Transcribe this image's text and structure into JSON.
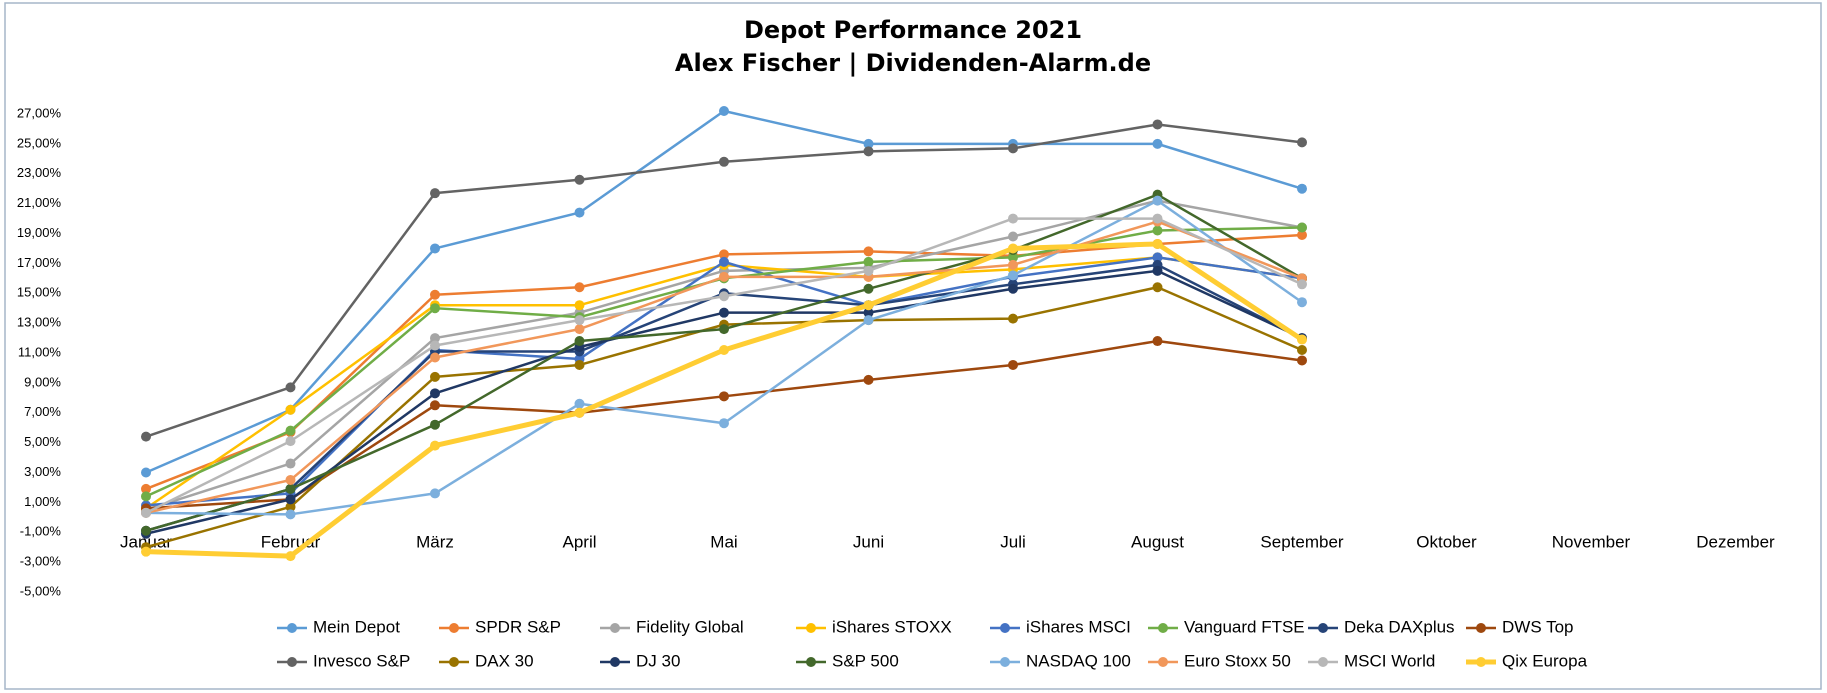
{
  "chart_data": {
    "type": "line",
    "title": "Depot Performance 2021",
    "subtitle": "Alex Fischer | Dividenden-Alarm.de",
    "categories": [
      "Januar",
      "Februar",
      "März",
      "April",
      "Mai",
      "Juni",
      "Juli",
      "August",
      "September",
      "Oktober",
      "November",
      "Dezember"
    ],
    "ylim": [
      -5,
      27
    ],
    "yticks": [
      {
        "value": -5,
        "label": "-5,00%"
      },
      {
        "value": -3,
        "label": "-3,00%"
      },
      {
        "value": -1,
        "label": "-1,00%"
      },
      {
        "value": 1,
        "label": "1,00%"
      },
      {
        "value": 3,
        "label": "3,00%"
      },
      {
        "value": 5,
        "label": "5,00%"
      },
      {
        "value": 7,
        "label": "7,00%"
      },
      {
        "value": 9,
        "label": "9,00%"
      },
      {
        "value": 11,
        "label": "11,00%"
      },
      {
        "value": 13,
        "label": "13,00%"
      },
      {
        "value": 15,
        "label": "15,00%"
      },
      {
        "value": 17,
        "label": "17,00%"
      },
      {
        "value": 19,
        "label": "19,00%"
      },
      {
        "value": 21,
        "label": "21,00%"
      },
      {
        "value": 23,
        "label": "23,00%"
      },
      {
        "value": 25,
        "label": "25,00%"
      },
      {
        "value": 27,
        "label": "27,00%"
      }
    ],
    "grid": false,
    "legend": "bottom",
    "series": [
      {
        "name": "Mein Depot",
        "color": "#5b9bd5",
        "values": [
          3.0,
          7.2,
          18.0,
          20.4,
          27.2,
          25.0,
          25.0,
          25.0,
          22.0,
          null,
          null,
          null
        ]
      },
      {
        "name": "SPDR S&P",
        "color": "#ed7d31",
        "values": [
          1.9,
          5.7,
          14.9,
          15.4,
          17.6,
          17.8,
          17.5,
          18.3,
          18.9,
          null,
          null,
          null
        ]
      },
      {
        "name": "Fidelity Global",
        "color": "#a5a5a5",
        "values": [
          0.5,
          3.6,
          12.0,
          13.7,
          16.5,
          16.7,
          18.8,
          21.2,
          19.4,
          null,
          null,
          null
        ]
      },
      {
        "name": "iShares STOXX",
        "color": "#ffc000",
        "values": [
          0.6,
          7.2,
          14.2,
          14.2,
          16.9,
          16.1,
          16.6,
          17.4,
          16.0,
          null,
          null,
          null
        ]
      },
      {
        "name": "iShares MSCI",
        "color": "#4472c4",
        "values": [
          0.8,
          1.6,
          11.2,
          10.6,
          17.1,
          14.2,
          16.1,
          17.4,
          16.0,
          null,
          null,
          null
        ]
      },
      {
        "name": "Vanguard FTSE",
        "color": "#70ad47",
        "values": [
          1.4,
          5.8,
          14.0,
          13.4,
          16.0,
          17.1,
          17.4,
          19.2,
          19.4,
          null,
          null,
          null
        ]
      },
      {
        "name": "Deka DAXplus",
        "color": "#264478",
        "values": [
          -0.9,
          1.9,
          11.1,
          11.1,
          15.0,
          14.2,
          15.6,
          16.9,
          12.0,
          null,
          null,
          null
        ]
      },
      {
        "name": "DWS Top",
        "color": "#9e480e",
        "values": [
          0.6,
          1.2,
          7.5,
          7.0,
          8.1,
          9.2,
          10.2,
          11.8,
          10.5,
          null,
          null,
          null
        ]
      },
      {
        "name": "Invesco S&P",
        "color": "#636363",
        "values": [
          5.4,
          8.7,
          21.7,
          22.6,
          23.8,
          24.5,
          24.7,
          26.3,
          25.1,
          null,
          null,
          null
        ]
      },
      {
        "name": "DAX 30",
        "color": "#997300",
        "values": [
          -2.0,
          0.7,
          9.4,
          10.2,
          12.9,
          13.2,
          13.3,
          15.4,
          11.2,
          null,
          null,
          null
        ]
      },
      {
        "name": "DJ 30",
        "color": "#203864",
        "values": [
          -1.1,
          1.2,
          8.3,
          11.4,
          13.7,
          13.7,
          15.3,
          16.5,
          12.0,
          null,
          null,
          null
        ]
      },
      {
        "name": "S&P 500",
        "color": "#43682b",
        "values": [
          -0.9,
          1.9,
          6.2,
          11.8,
          12.6,
          15.3,
          17.9,
          21.6,
          16.0,
          null,
          null,
          null
        ]
      },
      {
        "name": "NASDAQ 100",
        "color": "#7cafdd",
        "values": [
          0.3,
          0.2,
          1.6,
          7.6,
          6.3,
          13.2,
          16.2,
          21.2,
          14.4,
          null,
          null,
          null
        ]
      },
      {
        "name": "Euro Stoxx 50",
        "color": "#f1975a",
        "values": [
          0.3,
          2.5,
          10.7,
          12.6,
          16.1,
          16.1,
          16.9,
          19.8,
          16.0,
          null,
          null,
          null
        ]
      },
      {
        "name": "MSCI World",
        "color": "#b7b7b7",
        "values": [
          0.3,
          5.1,
          11.5,
          13.2,
          14.8,
          16.5,
          20.0,
          20.0,
          15.6,
          null,
          null,
          null
        ]
      },
      {
        "name": "Qix Europa",
        "color": "#ffcd33",
        "line_width": 5,
        "values": [
          -2.3,
          -2.6,
          4.8,
          7.0,
          11.2,
          14.2,
          18.0,
          18.3,
          11.9,
          null,
          null,
          null
        ]
      }
    ]
  }
}
